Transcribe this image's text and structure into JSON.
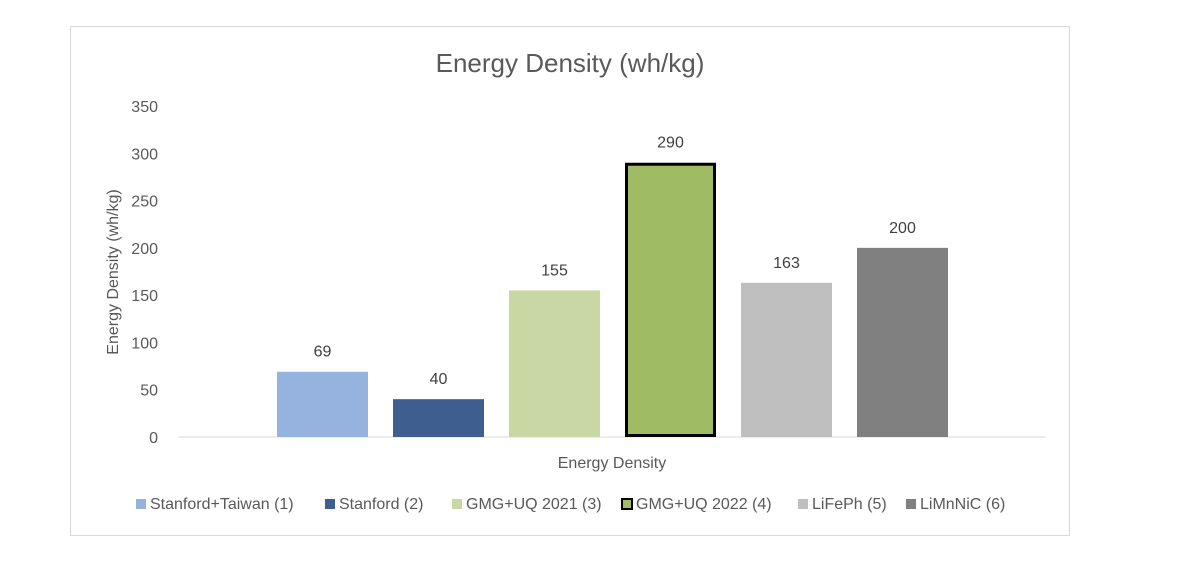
{
  "chart_data": {
    "type": "bar",
    "title": "Energy Density (wh/kg)",
    "xlabel": "Energy Density",
    "ylabel": "Energy Density (wh/kg)",
    "ylim": [
      0,
      350
    ],
    "yticks": [
      0,
      50,
      100,
      150,
      200,
      250,
      300,
      350
    ],
    "grid": false,
    "legend_position": "bottom",
    "categories": [
      "Energy Density"
    ],
    "series": [
      {
        "name": "Stanford+Taiwan (1)",
        "values": [
          69
        ],
        "color": "#95b3de",
        "label": "69"
      },
      {
        "name": "Stanford (2)",
        "values": [
          40
        ],
        "color": "#3e5e8f",
        "label": "40"
      },
      {
        "name": "GMG+UQ 2021 (3)",
        "values": [
          155
        ],
        "color": "#c8d7a3",
        "label": "155"
      },
      {
        "name": "GMG+UQ 2022 (4)",
        "values": [
          290
        ],
        "color": "#9fbb64",
        "border": "#000000",
        "label": "290"
      },
      {
        "name": "LiFePh (5)",
        "values": [
          163
        ],
        "color": "#bfbfbf",
        "label": "163"
      },
      {
        "name": "LiMnNiC (6)",
        "values": [
          200
        ],
        "color": "#808080",
        "label": "200"
      }
    ]
  }
}
